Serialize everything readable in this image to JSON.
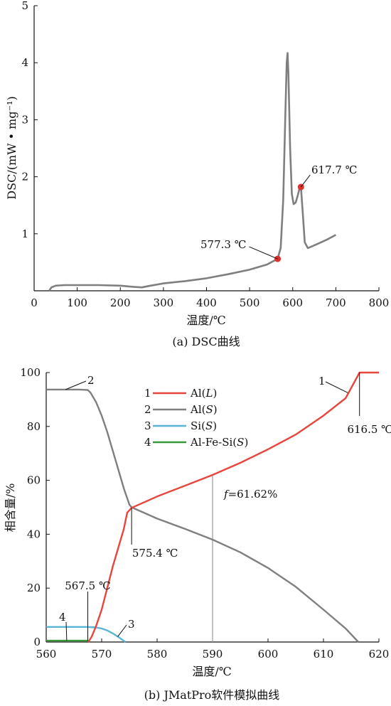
{
  "chart_data": [
    {
      "type": "line",
      "caption": "(a) DSC曲线",
      "xlabel": "温度/℃",
      "ylabel": "DSC/(mW • mg⁻¹)",
      "xlim": [
        0,
        800
      ],
      "ylim": [
        0,
        5
      ],
      "xticks": [
        0,
        100,
        200,
        300,
        400,
        500,
        600,
        700,
        800
      ],
      "yticks": [
        1,
        2,
        3,
        4,
        5
      ],
      "series": [
        {
          "color": "#7f7f7f",
          "x": [
            35,
            40,
            50,
            70,
            100,
            150,
            200,
            230,
            250,
            270,
            300,
            350,
            400,
            450,
            500,
            540,
            565,
            572,
            578,
            583,
            586,
            588,
            590,
            594,
            598,
            602,
            607,
            612,
            616,
            619,
            623,
            628,
            635,
            645,
            660,
            680,
            700
          ],
          "y": [
            0.0,
            0.06,
            0.09,
            0.1,
            0.1,
            0.1,
            0.09,
            0.07,
            0.06,
            0.09,
            0.13,
            0.17,
            0.22,
            0.29,
            0.37,
            0.46,
            0.56,
            0.75,
            1.6,
            3.1,
            4.0,
            4.17,
            3.8,
            2.5,
            1.7,
            1.52,
            1.55,
            1.68,
            1.8,
            1.82,
            1.4,
            0.85,
            0.75,
            0.78,
            0.83,
            0.9,
            0.98
          ]
        }
      ],
      "markers": [
        {
          "x": 565,
          "y": 0.56,
          "color": "#e0302a"
        },
        {
          "x": 619,
          "y": 1.82,
          "color": "#e0302a"
        }
      ],
      "annotations": [
        {
          "text": "577.3 ℃",
          "x": 565,
          "y": 0.56
        },
        {
          "text": "617.7 ℃",
          "x": 619,
          "y": 1.82
        }
      ]
    },
    {
      "type": "line",
      "caption": "(b) JMatPro软件模拟曲线",
      "xlabel": "温度/℃",
      "ylabel": "相含量/%",
      "xlim": [
        560,
        620
      ],
      "ylim": [
        0,
        100
      ],
      "xticks": [
        560,
        570,
        580,
        590,
        600,
        610,
        620
      ],
      "yticks": [
        0,
        20,
        40,
        60,
        80,
        100
      ],
      "legend": [
        {
          "num": "1",
          "label": "Al(",
          "italic": "L",
          "tail": ")",
          "color": "#e8453c"
        },
        {
          "num": "2",
          "label": "Al(",
          "italic": "S",
          "tail": ")",
          "color": "#7f7f7f"
        },
        {
          "num": "3",
          "label": "Si(",
          "italic": "S",
          "tail": ")",
          "color": "#5ab4d6"
        },
        {
          "num": "4",
          "label": "Al-Fe-Si(",
          "italic": "S",
          "tail": ")",
          "color": "#3a9a3a"
        }
      ],
      "series": [
        {
          "num": "1",
          "color": "#e8453c",
          "x": [
            567.6,
            568.2,
            569,
            570,
            571,
            572,
            573,
            574,
            574.6,
            575.4,
            580,
            585,
            590,
            595,
            600,
            605,
            610,
            614,
            616.5,
            620
          ],
          "y": [
            0,
            2,
            6,
            12,
            20,
            28,
            35,
            42,
            48,
            49.8,
            54,
            58,
            62,
            66.5,
            71.5,
            77,
            84,
            90.5,
            100,
            100
          ]
        },
        {
          "num": "2",
          "color": "#7f7f7f",
          "x": [
            560,
            562,
            564,
            566,
            567.5,
            568,
            569,
            570,
            571,
            572,
            573,
            574,
            575,
            575.4,
            580,
            585,
            590,
            595,
            600,
            605,
            610,
            614,
            616.3
          ],
          "y": [
            93.7,
            93.7,
            93.7,
            93.7,
            93.5,
            92.5,
            89,
            84,
            78,
            71,
            64,
            57,
            51,
            50,
            45.8,
            42,
            38,
            33.3,
            27.5,
            20.5,
            12,
            5,
            0
          ]
        },
        {
          "num": "3",
          "color": "#5ab4d6",
          "x": [
            560,
            566,
            567.5,
            569,
            570,
            571,
            572,
            573,
            573.8,
            574.3
          ],
          "y": [
            5.6,
            5.6,
            5.6,
            5.4,
            5.0,
            4.3,
            3.2,
            1.9,
            0.7,
            0
          ]
        },
        {
          "num": "4",
          "color": "#3a9a3a",
          "x": [
            560,
            567.6
          ],
          "y": [
            0.5,
            0.5
          ]
        }
      ],
      "vline": {
        "x": 590,
        "y0": 0,
        "y1": 62
      },
      "annotations": [
        {
          "text": "567.5 ℃",
          "x": 567.5
        },
        {
          "text": "575.4 ℃",
          "x": 575.4
        },
        {
          "text": "616.5 ℃",
          "x": 616.5
        },
        {
          "text": "f=61.62%",
          "italic": "f",
          "rest": "=61.62%"
        }
      ]
    }
  ]
}
